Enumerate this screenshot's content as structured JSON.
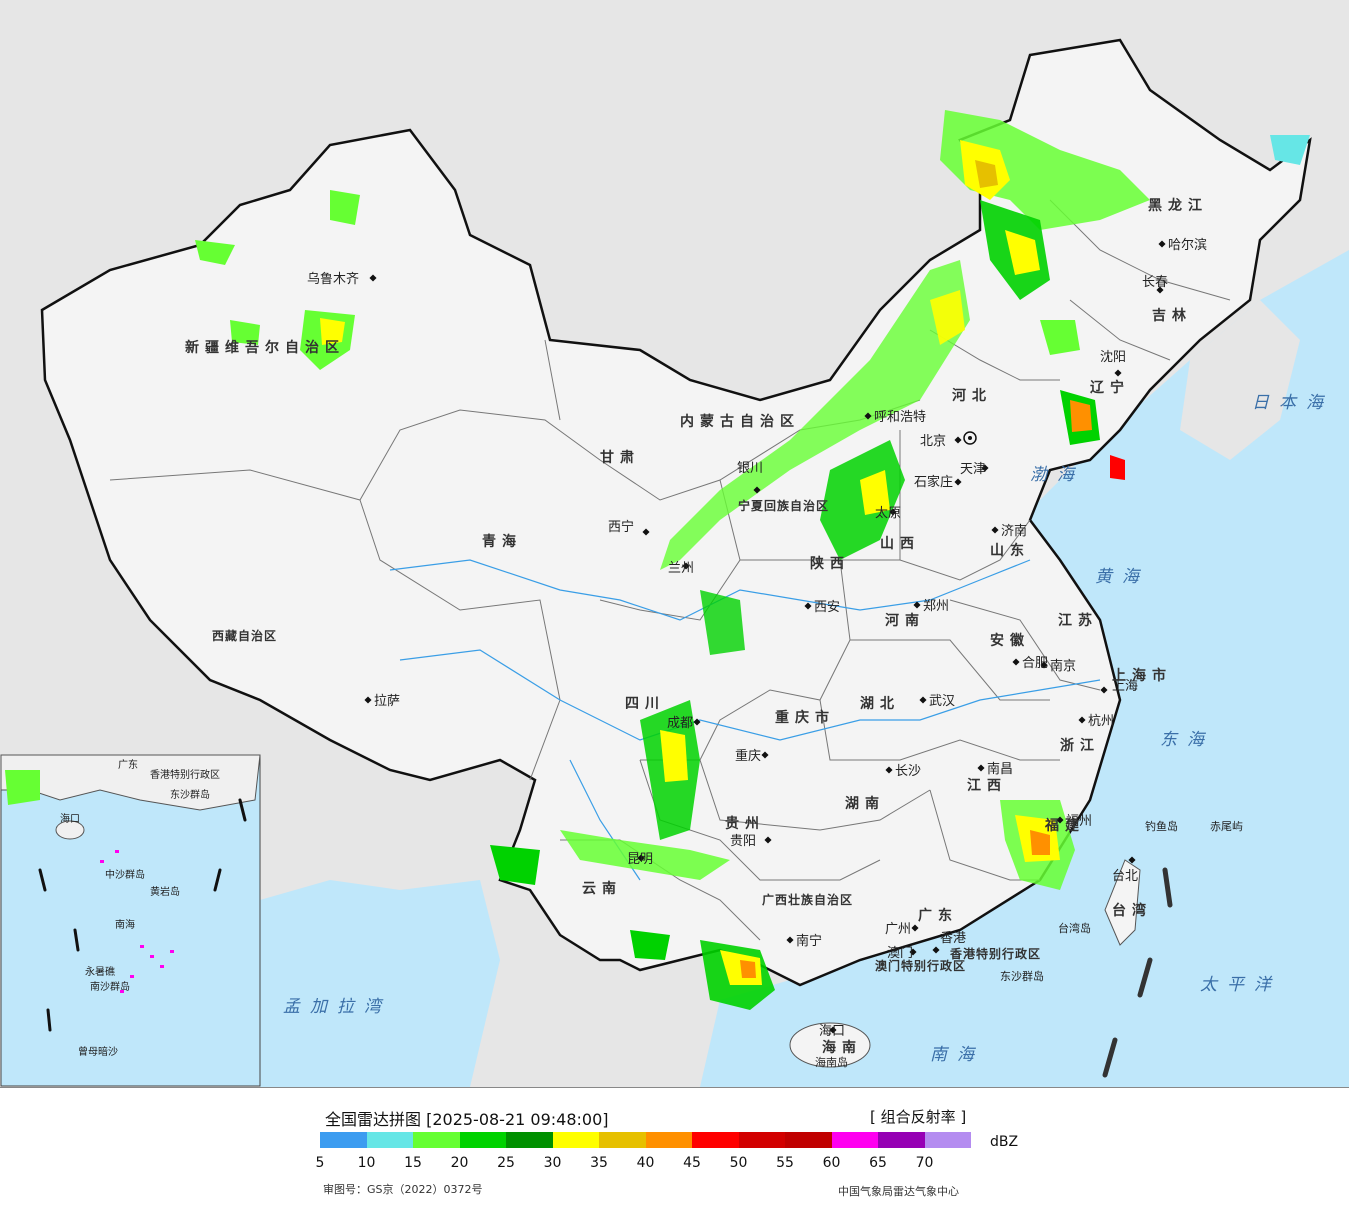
{
  "map": {
    "cities": [
      {
        "name": "乌鲁木齐"
      },
      {
        "name": "拉萨"
      },
      {
        "name": "西宁"
      },
      {
        "name": "银川"
      },
      {
        "name": "兰州"
      },
      {
        "name": "呼和浩特"
      },
      {
        "name": "北京"
      },
      {
        "name": "天津"
      },
      {
        "name": "石家庄"
      },
      {
        "name": "太原"
      },
      {
        "name": "济南"
      },
      {
        "name": "郑州"
      },
      {
        "name": "西安"
      },
      {
        "name": "成都"
      },
      {
        "name": "重庆"
      },
      {
        "name": "武汉"
      },
      {
        "name": "合肥"
      },
      {
        "name": "南京"
      },
      {
        "name": "上海"
      },
      {
        "name": "杭州"
      },
      {
        "name": "长沙"
      },
      {
        "name": "南昌"
      },
      {
        "name": "福州"
      },
      {
        "name": "贵阳"
      },
      {
        "name": "昆明"
      },
      {
        "name": "南宁"
      },
      {
        "name": "广州"
      },
      {
        "name": "香港"
      },
      {
        "name": "澳门"
      },
      {
        "name": "海口"
      },
      {
        "name": "台北"
      },
      {
        "name": "沈阳"
      },
      {
        "name": "长春"
      },
      {
        "name": "哈尔滨"
      }
    ],
    "provinces": [
      "新疆维吾尔自治区",
      "西藏自治区",
      "青海",
      "甘肃",
      "内蒙古自治区",
      "黑龙江",
      "吉林",
      "辽宁",
      "河北",
      "山西",
      "陕西",
      "山东",
      "河南",
      "江苏",
      "安徽",
      "湖北",
      "四川",
      "重庆市",
      "湖南",
      "江西",
      "浙江",
      "福建",
      "贵州",
      "云南",
      "广西壮族自治区",
      "广东",
      "海南",
      "台湾",
      "上海市",
      "宁夏回族自治区",
      "香港特别行政区",
      "澳门特别行政区"
    ],
    "seas": [
      "日本海",
      "渤海",
      "黄海",
      "东海",
      "太平洋",
      "南海",
      "孟加拉湾"
    ],
    "islands": [
      "钓鱼岛",
      "赤尾屿",
      "台湾岛",
      "东沙群岛",
      "海南岛"
    ],
    "inset_labels": [
      "广东",
      "香港特别行政区",
      "东沙群岛",
      "海口",
      "南海",
      "中沙群岛",
      "永暑礁",
      "南沙群岛",
      "曾母暗沙",
      "黄岩岛"
    ]
  },
  "legend": {
    "title": "全国雷达拼图 [2025-08-21 09:48:00]",
    "product": "[ 组合反射率 ]",
    "unit": "dBZ",
    "colors": [
      "#3c9cf0",
      "#66e6e6",
      "#66ff33",
      "#00d200",
      "#009000",
      "#ffff00",
      "#e6c000",
      "#ff9000",
      "#ff0000",
      "#d20000",
      "#c00000",
      "#ff00f0",
      "#9600b4",
      "#b48cf0"
    ],
    "ticks": [
      "5",
      "10",
      "15",
      "20",
      "25",
      "30",
      "35",
      "40",
      "45",
      "50",
      "55",
      "60",
      "65",
      "70"
    ],
    "approval": "审图号：GS京（2022）0372号",
    "credit": "中国气象局雷达气象中心"
  }
}
